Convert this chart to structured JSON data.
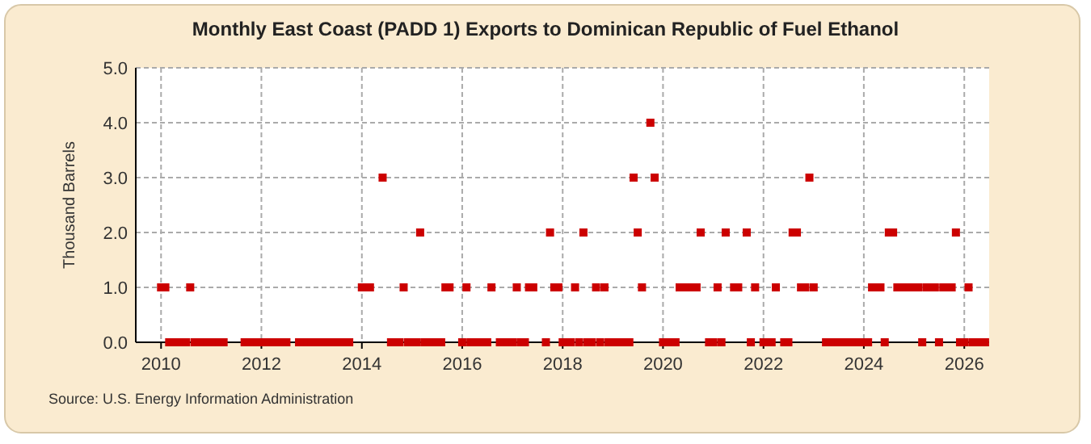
{
  "chart_data": {
    "type": "scatter",
    "title": "Monthly East Coast (PADD 1) Exports to Dominican Republic of Fuel Ethanol",
    "ylabel": "Thousand Barrels",
    "annotations": [
      "Source: U.S. Energy Information Administration"
    ],
    "x": [
      "2010-01",
      "2010-02",
      "2010-03",
      "2010-04",
      "2010-05",
      "2010-06",
      "2010-07",
      "2010-08",
      "2010-09",
      "2010-10",
      "2010-11",
      "2010-12",
      "2011-01",
      "2011-02",
      "2011-03",
      "2011-04",
      "2011-05",
      "2011-06",
      "2011-07",
      "2011-08",
      "2011-09",
      "2011-10",
      "2011-11",
      "2011-12",
      "2012-01",
      "2012-02",
      "2012-03",
      "2012-04",
      "2012-05",
      "2012-06",
      "2012-07",
      "2012-08",
      "2012-09",
      "2012-10",
      "2012-11",
      "2012-12",
      "2013-01",
      "2013-02",
      "2013-03",
      "2013-04",
      "2013-05",
      "2013-06",
      "2013-07",
      "2013-08",
      "2013-09",
      "2013-10",
      "2013-11",
      "2013-12",
      "2014-01",
      "2014-02",
      "2014-03",
      "2014-04",
      "2014-05",
      "2014-06",
      "2014-07",
      "2014-08",
      "2014-09",
      "2014-10",
      "2014-11",
      "2014-12",
      "2015-01",
      "2015-02",
      "2015-03",
      "2015-04",
      "2015-05",
      "2015-06",
      "2015-07",
      "2015-08",
      "2015-09",
      "2015-10",
      "2015-11",
      "2015-12",
      "2016-01",
      "2016-02",
      "2016-03",
      "2016-04",
      "2016-05",
      "2016-06",
      "2016-07",
      "2016-08",
      "2016-09",
      "2016-10",
      "2016-11",
      "2016-12",
      "2017-01",
      "2017-02",
      "2017-03",
      "2017-04",
      "2017-05",
      "2017-06",
      "2017-07",
      "2017-08",
      "2017-09",
      "2017-10",
      "2017-11",
      "2017-12",
      "2018-01",
      "2018-02",
      "2018-03",
      "2018-04",
      "2018-05",
      "2018-06",
      "2018-07",
      "2018-08",
      "2018-09",
      "2018-10",
      "2018-11",
      "2018-12",
      "2019-01",
      "2019-02",
      "2019-03",
      "2019-04",
      "2019-05",
      "2019-06",
      "2019-07",
      "2019-08",
      "2019-09",
      "2019-10",
      "2019-11",
      "2019-12",
      "2020-01",
      "2020-02",
      "2020-03",
      "2020-04",
      "2020-05",
      "2020-06",
      "2020-07",
      "2020-08",
      "2020-09",
      "2020-10",
      "2020-11",
      "2020-12",
      "2021-01",
      "2021-02",
      "2021-03",
      "2021-04",
      "2021-05",
      "2021-06",
      "2021-07",
      "2021-08",
      "2021-09",
      "2021-10",
      "2021-11",
      "2021-12",
      "2022-01",
      "2022-02",
      "2022-03",
      "2022-04",
      "2022-05",
      "2022-06",
      "2022-07",
      "2022-08",
      "2022-09",
      "2022-10",
      "2022-11",
      "2022-12",
      "2023-01",
      "2023-02",
      "2023-03",
      "2023-04",
      "2023-05",
      "2023-06",
      "2023-07",
      "2023-08",
      "2023-09",
      "2023-10",
      "2023-11",
      "2023-12",
      "2024-01",
      "2024-02",
      "2024-03",
      "2024-04",
      "2024-05",
      "2024-06",
      "2024-07",
      "2024-08",
      "2024-09",
      "2024-10",
      "2024-11",
      "2024-12",
      "2025-01",
      "2025-02",
      "2025-03",
      "2025-04",
      "2025-05",
      "2025-06",
      "2025-07",
      "2025-08",
      "2025-09",
      "2025-10",
      "2025-11",
      "2025-12",
      "2026-01",
      "2026-02",
      "2026-03",
      "2026-04",
      "2026-05",
      "2026-06"
    ],
    "values": [
      1,
      1,
      0,
      0,
      0,
      0,
      0,
      1,
      0,
      0,
      0,
      0,
      0,
      0,
      0,
      0,
      null,
      null,
      null,
      null,
      0,
      0,
      0,
      0,
      0,
      0,
      0,
      0,
      0,
      0,
      0,
      null,
      null,
      0,
      0,
      0,
      0,
      0,
      0,
      0,
      0,
      0,
      0,
      0,
      0,
      0,
      null,
      null,
      1,
      1,
      1,
      null,
      null,
      3,
      null,
      0,
      0,
      0,
      1,
      0,
      0,
      0,
      2,
      0,
      0,
      0,
      0,
      0,
      1,
      1,
      null,
      null,
      0,
      1,
      0,
      0,
      0,
      0,
      0,
      1,
      null,
      0,
      0,
      0,
      0,
      1,
      0,
      0,
      1,
      1,
      null,
      null,
      0,
      2,
      1,
      1,
      0,
      0,
      0,
      1,
      0,
      2,
      0,
      0,
      1,
      0,
      1,
      0,
      0,
      0,
      0,
      0,
      0,
      3,
      2,
      1,
      null,
      4,
      3,
      null,
      0,
      0,
      0,
      0,
      1,
      1,
      1,
      1,
      1,
      2,
      null,
      0,
      0,
      1,
      0,
      2,
      null,
      1,
      1,
      null,
      2,
      0,
      1,
      null,
      0,
      0,
      0,
      1,
      null,
      0,
      0,
      2,
      2,
      1,
      1,
      3,
      1,
      null,
      null,
      0,
      0,
      0,
      0,
      0,
      0,
      0,
      0,
      0,
      0,
      0,
      1,
      1,
      1,
      0,
      2,
      2,
      1,
      1,
      1,
      1,
      1,
      1,
      0,
      1,
      1,
      1,
      0,
      1,
      1,
      1,
      2,
      0,
      0,
      1,
      0,
      0,
      0,
      0
    ],
    "color": "#cc0000",
    "marker": "square",
    "grid": true,
    "xlim": [
      "2009-07",
      "2026-07"
    ],
    "xticks": [
      {
        "value": "2010",
        "label": "2010"
      },
      {
        "value": "2012",
        "label": "2012"
      },
      {
        "value": "2014",
        "label": "2014"
      },
      {
        "value": "2016",
        "label": "2016"
      },
      {
        "value": "2018",
        "label": "2018"
      },
      {
        "value": "2020",
        "label": "2020"
      },
      {
        "value": "2022",
        "label": "2022"
      },
      {
        "value": "2024",
        "label": "2024"
      },
      {
        "value": "2026",
        "label": "2026"
      }
    ],
    "ylim": [
      0,
      5
    ],
    "yticks": [
      {
        "value": 0,
        "label": "0.0"
      },
      {
        "value": 1,
        "label": "1.0"
      },
      {
        "value": 2,
        "label": "2.0"
      },
      {
        "value": 3,
        "label": "3.0"
      },
      {
        "value": 4,
        "label": "4.0"
      },
      {
        "value": 5,
        "label": "5.0"
      }
    ]
  }
}
